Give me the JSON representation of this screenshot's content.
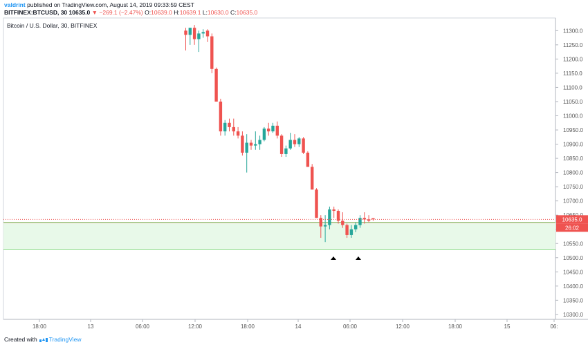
{
  "header": {
    "author": "valdrint",
    "published_text": "published on TradingView.com, August 14, 2019 09:33:59 CEST",
    "symbol": "BITFINEX:BTCUSD, 30",
    "last_price": "10635.0",
    "change": "▼ −269.1 (−2.47%)",
    "o_label": "O:",
    "o_value": "10639.0",
    "h_label": "H:",
    "h_value": "10639.1",
    "l_label": "L:",
    "l_value": "10630.0",
    "c_label": "C:",
    "c_value": "10635.0"
  },
  "footer": {
    "created_with": "Created with",
    "brand": "TradingView"
  },
  "colors": {
    "up": "#26a69a",
    "down": "#ef5350",
    "zone_fill": "#e8f9e9",
    "zone_line": "#7ed77a",
    "axis_text": "#555555"
  },
  "chart_data": {
    "type": "candlestick",
    "title": "Bitcoin / U.S. Dollar, 30, BITFINEX",
    "y_ticks": [
      11300,
      11250,
      11200,
      11150,
      11100,
      11050,
      11000,
      10950,
      10900,
      10850,
      10800,
      10750,
      10700,
      10650,
      10600,
      10550,
      10500,
      10450,
      10400,
      10350,
      10300
    ],
    "y_tick_labels": [
      "11300.0",
      "11250.0",
      "11200.0",
      "11150.0",
      "11100.0",
      "11050.0",
      "11000.0",
      "10950.0",
      "10900.0",
      "10850.0",
      "10800.0",
      "10750.0",
      "10700.0",
      "10650.0",
      "10600.0",
      "10550.0",
      "10500.0",
      "10450.0",
      "10400.0",
      "10350.0",
      "10300.0"
    ],
    "ylim": [
      10290,
      11330
    ],
    "x_tick_labels": [
      "18:00",
      "13",
      "06:00",
      "12:00",
      "18:00",
      "14",
      "06:00",
      "12:00",
      "18:00",
      "15",
      "06:"
    ],
    "last_price_label": "10635.0",
    "countdown_label": "26:02",
    "support_zone": [
      10530,
      10625
    ],
    "marker_count": 2,
    "candles": [
      {
        "o": 11300,
        "h": 11310,
        "l": 11230,
        "c": 11285
      },
      {
        "o": 11285,
        "h": 11310,
        "l": 11250,
        "c": 11310
      },
      {
        "o": 11310,
        "h": 11320,
        "l": 11250,
        "c": 11270
      },
      {
        "o": 11270,
        "h": 11300,
        "l": 11225,
        "c": 11290
      },
      {
        "o": 11290,
        "h": 11305,
        "l": 11275,
        "c": 11295
      },
      {
        "o": 11300,
        "h": 11305,
        "l": 11260,
        "c": 11280
      },
      {
        "o": 11280,
        "h": 11290,
        "l": 11150,
        "c": 11165
      },
      {
        "o": 11165,
        "h": 11170,
        "l": 11050,
        "c": 11050
      },
      {
        "o": 11050,
        "h": 11060,
        "l": 10930,
        "c": 10945
      },
      {
        "o": 10945,
        "h": 10985,
        "l": 10930,
        "c": 10975
      },
      {
        "o": 10975,
        "h": 10990,
        "l": 10945,
        "c": 10960
      },
      {
        "o": 10960,
        "h": 10990,
        "l": 10930,
        "c": 10945
      },
      {
        "o": 10945,
        "h": 10960,
        "l": 10920,
        "c": 10930
      },
      {
        "o": 10930,
        "h": 10945,
        "l": 10860,
        "c": 10870
      },
      {
        "o": 10870,
        "h": 10935,
        "l": 10800,
        "c": 10905
      },
      {
        "o": 10905,
        "h": 10915,
        "l": 10880,
        "c": 10895
      },
      {
        "o": 10895,
        "h": 10945,
        "l": 10880,
        "c": 10900
      },
      {
        "o": 10900,
        "h": 10930,
        "l": 10880,
        "c": 10915
      },
      {
        "o": 10915,
        "h": 10960,
        "l": 10910,
        "c": 10955
      },
      {
        "o": 10955,
        "h": 10975,
        "l": 10930,
        "c": 10945
      },
      {
        "o": 10945,
        "h": 10975,
        "l": 10940,
        "c": 10965
      },
      {
        "o": 10965,
        "h": 10980,
        "l": 10920,
        "c": 10930
      },
      {
        "o": 10930,
        "h": 10935,
        "l": 10855,
        "c": 10865
      },
      {
        "o": 10865,
        "h": 10895,
        "l": 10855,
        "c": 10885
      },
      {
        "o": 10885,
        "h": 10940,
        "l": 10880,
        "c": 10915
      },
      {
        "o": 10915,
        "h": 10935,
        "l": 10890,
        "c": 10900
      },
      {
        "o": 10900,
        "h": 10925,
        "l": 10890,
        "c": 10920
      },
      {
        "o": 10920,
        "h": 10925,
        "l": 10865,
        "c": 10870
      },
      {
        "o": 10870,
        "h": 10875,
        "l": 10820,
        "c": 10820
      },
      {
        "o": 10820,
        "h": 10830,
        "l": 10740,
        "c": 10740
      },
      {
        "o": 10740,
        "h": 10745,
        "l": 10640,
        "c": 10640
      },
      {
        "o": 10640,
        "h": 10650,
        "l": 10570,
        "c": 10610
      },
      {
        "o": 10610,
        "h": 10650,
        "l": 10555,
        "c": 10615
      },
      {
        "o": 10615,
        "h": 10680,
        "l": 10600,
        "c": 10670
      },
      {
        "o": 10670,
        "h": 10680,
        "l": 10640,
        "c": 10665
      },
      {
        "o": 10665,
        "h": 10670,
        "l": 10620,
        "c": 10630
      },
      {
        "o": 10630,
        "h": 10660,
        "l": 10605,
        "c": 10615
      },
      {
        "o": 10615,
        "h": 10620,
        "l": 10570,
        "c": 10580
      },
      {
        "o": 10580,
        "h": 10615,
        "l": 10570,
        "c": 10600
      },
      {
        "o": 10600,
        "h": 10625,
        "l": 10590,
        "c": 10615
      },
      {
        "o": 10615,
        "h": 10650,
        "l": 10605,
        "c": 10640
      },
      {
        "o": 10640,
        "h": 10660,
        "l": 10620,
        "c": 10635
      },
      {
        "o": 10635,
        "h": 10650,
        "l": 10625,
        "c": 10630
      },
      {
        "o": 10639,
        "h": 10639.1,
        "l": 10630,
        "c": 10635
      }
    ]
  }
}
